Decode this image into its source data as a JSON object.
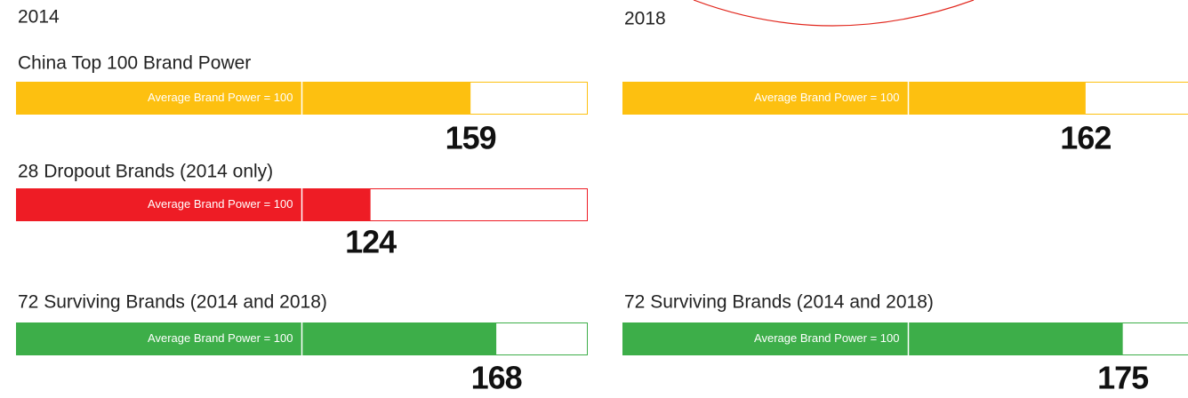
{
  "chart_data": {
    "type": "bar",
    "xlim": [
      0,
      200
    ],
    "reference": {
      "value": 100,
      "label": "Average Brand Power = 100"
    },
    "panels": [
      {
        "year": "2014",
        "groups": [
          {
            "name": "China Top 100 Brand Power",
            "color": "#fdc010",
            "value": 159
          },
          {
            "name": "28 Dropout Brands (2014 only)",
            "color": "#ee1c25",
            "value": 124
          },
          {
            "name": "72 Surviving Brands (2014 and 2018)",
            "color": "#3dae49",
            "value": 168
          }
        ]
      },
      {
        "year": "2018",
        "groups": [
          {
            "name": null,
            "color": "#fdc010",
            "value": 162
          },
          null,
          {
            "name": "72 Surviving Brands (2014 and 2018)",
            "color": "#3dae49",
            "value": 175
          }
        ]
      }
    ]
  }
}
